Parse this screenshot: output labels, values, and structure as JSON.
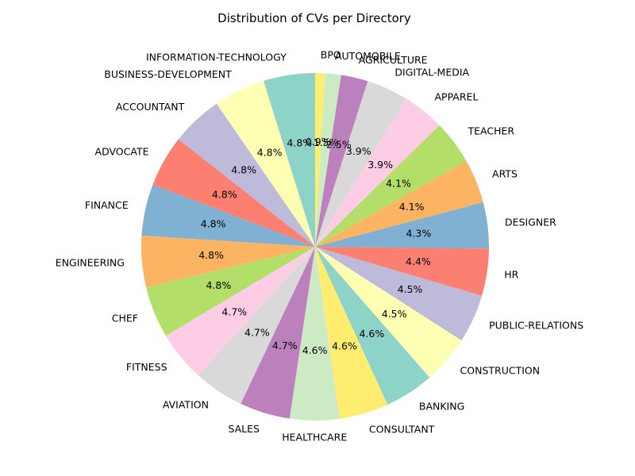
{
  "chart_data": {
    "type": "pie",
    "title": "Distribution of CVs per Directory",
    "start_angle_deg": 90,
    "direction": "clockwise",
    "categories": [
      "BPO",
      "AUTOMOBILE",
      "AGRICULTURE",
      "DIGITAL-MEDIA",
      "APPAREL",
      "TEACHER",
      "ARTS",
      "DESIGNER",
      "HR",
      "PUBLIC-RELATIONS",
      "CONSTRUCTION",
      "BANKING",
      "CONSULTANT",
      "HEALTHCARE",
      "SALES",
      "AVIATION",
      "FITNESS",
      "CHEF",
      "ENGINEERING",
      "FINANCE",
      "ADVOCATE",
      "ACCOUNTANT",
      "BUSINESS-DEVELOPMENT",
      "INFORMATION-TECHNOLOGY"
    ],
    "values": [
      0.9,
      1.5,
      2.5,
      3.9,
      3.9,
      4.1,
      4.1,
      4.3,
      4.4,
      4.5,
      4.5,
      4.6,
      4.6,
      4.6,
      4.7,
      4.7,
      4.7,
      4.8,
      4.8,
      4.8,
      4.8,
      4.8,
      4.8,
      4.8
    ],
    "pct_labels": [
      "0.9%",
      "1.5%",
      "2.5%",
      "3.9%",
      "3.9%",
      "4.1%",
      "4.1%",
      "4.3%",
      "4.4%",
      "4.5%",
      "4.5%",
      "4.6%",
      "4.6%",
      "4.6%",
      "4.7%",
      "4.7%",
      "4.7%",
      "4.8%",
      "4.8%",
      "4.8%",
      "4.8%",
      "4.8%",
      "4.8%",
      "4.8%"
    ],
    "colors": [
      "#ffed6f",
      "#ccebc5",
      "#bc80bd",
      "#d9d9d9",
      "#fccde5",
      "#b3de69",
      "#fdb462",
      "#80b1d3",
      "#fb8072",
      "#bebada",
      "#ffffb3",
      "#8dd3c7",
      "#ffed6f",
      "#ccebc5",
      "#bc80bd",
      "#d9d9d9",
      "#fccde5",
      "#b3de69",
      "#fdb462",
      "#80b1d3",
      "#fb8072",
      "#bebada",
      "#ffffb3",
      "#8dd3c7"
    ],
    "legend": "none"
  }
}
